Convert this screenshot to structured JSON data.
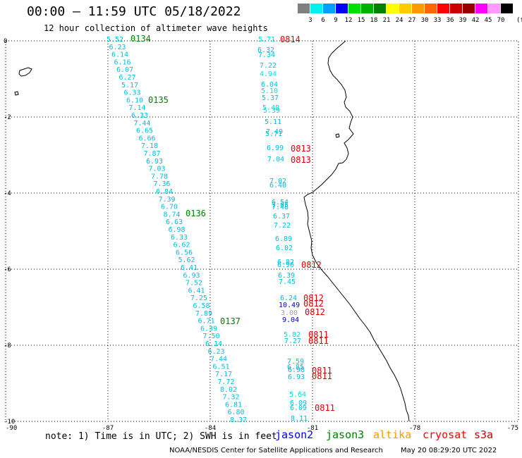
{
  "header": {
    "title": "00:00 — 11:59 UTC 05/18/2022",
    "subtitle": "12 hour collection of altimeter wave heights"
  },
  "legend": {
    "colors": [
      "#808080",
      "#00f0f0",
      "#00a0ff",
      "#0000ff",
      "#00e000",
      "#00b000",
      "#008000",
      "#ffff00",
      "#ffcc00",
      "#ff9900",
      "#ff6600",
      "#ff0000",
      "#cc0000",
      "#990000",
      "#ff00ff",
      "#ff99ff",
      "#000000"
    ],
    "labels": [
      "3",
      "6",
      "9",
      "12",
      "15",
      "18",
      "21",
      "24",
      "27",
      "30",
      "33",
      "36",
      "39",
      "42",
      "45",
      "70"
    ],
    "unit": "(ft)"
  },
  "axes": {
    "lon_labels": [
      "-90",
      "-87",
      "-84",
      "-81",
      "-78",
      "-75"
    ],
    "lat_labels": [
      "0",
      "-2",
      "-4",
      "-6",
      "-8",
      "-10"
    ]
  },
  "track_left": {
    "color": "#00bfe0",
    "values": [
      "5.52",
      "6.23",
      "6.14",
      "6.16",
      "6.07",
      "6.27",
      "5.17",
      "6.33",
      "6.10",
      "7.14",
      "6.33",
      "7.44",
      "6.65",
      "6.66",
      "7.18",
      "7.87",
      "6.93",
      "7.03",
      "7.78",
      "7.36",
      "6.84",
      "7.39",
      "6.70",
      "8.74",
      "6.63",
      "6.98",
      "6.33",
      "6.62",
      "6.56",
      "5.62",
      "6.41",
      "6.93",
      "7.52",
      "6.41",
      "7.25",
      "6.58",
      "7.89",
      "6.71",
      "6.39",
      "7.50",
      "6.14",
      "6.23",
      "7.44",
      "6.51",
      "7.17",
      "7.72",
      "8.02",
      "7.32",
      "6.81",
      "6.80",
      "8.37"
    ],
    "times": [
      "0134",
      "0135",
      "0136",
      "0137"
    ]
  },
  "track_right": {
    "values": [
      "5.71",
      "6.32",
      "7.34",
      "7.22",
      "4.94",
      "6.04",
      "5.10",
      "5.37",
      "5.48",
      "5.39",
      "5.11",
      "5.71",
      "7.49",
      "6.99",
      "7.04",
      "7.02",
      "6.40",
      "6.54",
      "7.05",
      "7.48",
      "6.37",
      "7.22",
      "6.89",
      "6.02",
      "6.82",
      "6.96",
      "6.39",
      "7.45",
      "6.24",
      "10.49",
      "3.00",
      "9.04",
      "5.82",
      "7.27",
      "7.59",
      "6.85",
      "6.98",
      "6.93",
      "5.64",
      "6.09",
      "6.09",
      "8.11"
    ],
    "times": [
      "0814",
      "0813",
      "0813",
      "0812",
      "0812",
      "0812",
      "0812",
      "0811",
      "0811",
      "0811",
      "0811",
      "0811"
    ]
  },
  "note": "note: 1) Time is in UTC; 2) SWH is in feet",
  "satellites": [
    {
      "name": "jason2",
      "color": "#0000ff"
    },
    {
      "name": "jason3",
      "color": "#008000"
    },
    {
      "name": "altika",
      "color": "#ff9900"
    },
    {
      "name": "cryosat",
      "color": "#ff0000"
    },
    {
      "name": "s3a",
      "color": "#cc0000"
    }
  ],
  "footer": {
    "left": "NOAA/NESDIS Center for Satellite Applications and Research",
    "right": "May 20 08:29:20 UTC 2022"
  }
}
